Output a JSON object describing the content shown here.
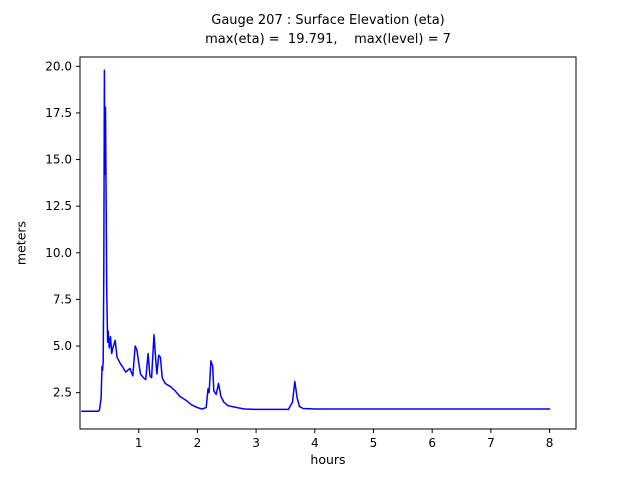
{
  "title": {
    "line1": "Gauge 207 : Surface Elevation (eta)",
    "line2": "max(eta) =  19.791,    max(level) = 7"
  },
  "chart_data": {
    "type": "line",
    "title": "Gauge 207 : Surface Elevation (eta)",
    "subtitle": "max(eta) =  19.791,    max(level) = 7",
    "xlabel": "hours",
    "ylabel": "meters",
    "xlim": [
      0,
      8.45
    ],
    "ylim": [
      0.55,
      20.5
    ],
    "xticks": [
      1,
      2,
      3,
      4,
      5,
      6,
      7,
      8
    ],
    "xtick_labels": [
      "1",
      "2",
      "3",
      "4",
      "5",
      "6",
      "7",
      "8"
    ],
    "yticks": [
      2.5,
      5.0,
      7.5,
      10.0,
      12.5,
      15.0,
      17.5,
      20.0
    ],
    "ytick_labels": [
      "2.5",
      "5.0",
      "7.5",
      "10.0",
      "12.5",
      "15.0",
      "17.5",
      "20.0"
    ],
    "grid": false,
    "legend": "none",
    "line_color": "#0000ff",
    "max_eta": 19.791,
    "max_level": 7,
    "series": [
      {
        "name": "eta",
        "points": [
          [
            0.03,
            1.5
          ],
          [
            0.3,
            1.5
          ],
          [
            0.33,
            1.55
          ],
          [
            0.36,
            2.2
          ],
          [
            0.375,
            3.9
          ],
          [
            0.385,
            3.7
          ],
          [
            0.395,
            4.2
          ],
          [
            0.405,
            9.0
          ],
          [
            0.415,
            19.791
          ],
          [
            0.425,
            14.2
          ],
          [
            0.435,
            17.8
          ],
          [
            0.445,
            13.0
          ],
          [
            0.455,
            8.2
          ],
          [
            0.47,
            5.2
          ],
          [
            0.48,
            5.8
          ],
          [
            0.5,
            4.9
          ],
          [
            0.52,
            5.5
          ],
          [
            0.54,
            4.6
          ],
          [
            0.56,
            4.9
          ],
          [
            0.6,
            5.3
          ],
          [
            0.63,
            4.4
          ],
          [
            0.68,
            4.1
          ],
          [
            0.72,
            3.9
          ],
          [
            0.78,
            3.6
          ],
          [
            0.85,
            3.8
          ],
          [
            0.9,
            3.4
          ],
          [
            0.94,
            5.0
          ],
          [
            0.97,
            4.8
          ],
          [
            1.0,
            4.1
          ],
          [
            1.03,
            3.5
          ],
          [
            1.08,
            3.3
          ],
          [
            1.12,
            3.2
          ],
          [
            1.16,
            4.6
          ],
          [
            1.19,
            3.4
          ],
          [
            1.22,
            3.3
          ],
          [
            1.26,
            5.6
          ],
          [
            1.29,
            4.3
          ],
          [
            1.31,
            3.5
          ],
          [
            1.34,
            4.5
          ],
          [
            1.37,
            4.4
          ],
          [
            1.4,
            3.3
          ],
          [
            1.45,
            3.0
          ],
          [
            1.5,
            2.9
          ],
          [
            1.55,
            2.8
          ],
          [
            1.62,
            2.6
          ],
          [
            1.7,
            2.3
          ],
          [
            1.8,
            2.1
          ],
          [
            1.9,
            1.85
          ],
          [
            2.0,
            1.7
          ],
          [
            2.08,
            1.62
          ],
          [
            2.15,
            1.7
          ],
          [
            2.18,
            2.7
          ],
          [
            2.2,
            2.5
          ],
          [
            2.23,
            4.2
          ],
          [
            2.26,
            3.9
          ],
          [
            2.28,
            2.6
          ],
          [
            2.32,
            2.4
          ],
          [
            2.36,
            3.0
          ],
          [
            2.4,
            2.3
          ],
          [
            2.45,
            2.0
          ],
          [
            2.52,
            1.8
          ],
          [
            2.6,
            1.75
          ],
          [
            2.7,
            1.68
          ],
          [
            2.8,
            1.62
          ],
          [
            3.0,
            1.6
          ],
          [
            3.55,
            1.6
          ],
          [
            3.62,
            2.0
          ],
          [
            3.66,
            3.1
          ],
          [
            3.7,
            2.2
          ],
          [
            3.74,
            1.75
          ],
          [
            3.8,
            1.65
          ],
          [
            4.0,
            1.62
          ],
          [
            5.0,
            1.62
          ],
          [
            6.0,
            1.62
          ],
          [
            7.0,
            1.62
          ],
          [
            8.0,
            1.62
          ]
        ]
      }
    ]
  }
}
